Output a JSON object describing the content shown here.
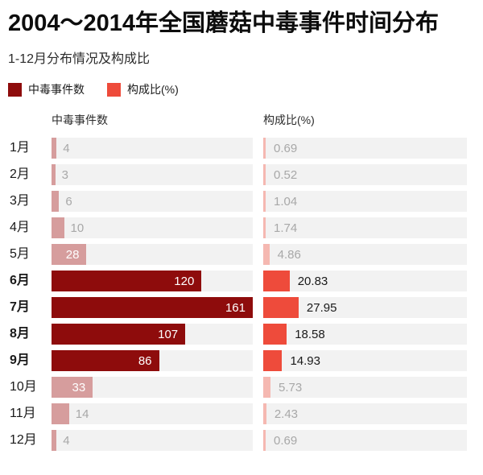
{
  "header": {
    "title": "2004～2014年全国蘑菇中毒事件时间分布",
    "subtitle": "1-12月分布情况及构成比"
  },
  "legend": [
    {
      "label": "中毒事件数",
      "color": "#8e0c0c"
    },
    {
      "label": "构成比(%)",
      "color": "#ee4b3b"
    }
  ],
  "columns": {
    "counts": "中毒事件数",
    "pct": "构成比(%)"
  },
  "colors": {
    "bar_dark": "#8e0c0c",
    "bar_orange": "#ee4b3b",
    "bar_pink": "#d69d9d",
    "bar_salmon": "#f5b8b1",
    "track": "#f2f2f2",
    "text_muted": "#a8a8a8",
    "text_dark": "#1a1a1a"
  },
  "chart_data": {
    "type": "bar",
    "orientation": "horizontal",
    "title": "2004～2014年全国蘑菇中毒事件时间分布",
    "subtitle": "1-12月分布情况及构成比",
    "categories": [
      "1月",
      "2月",
      "3月",
      "4月",
      "5月",
      "6月",
      "7月",
      "8月",
      "9月",
      "10月",
      "11月",
      "12月"
    ],
    "series": [
      {
        "name": "中毒事件数",
        "values": [
          4,
          3,
          6,
          10,
          28,
          120,
          161,
          107,
          86,
          33,
          14,
          4
        ]
      },
      {
        "name": "构成比(%)",
        "values": [
          0.69,
          0.52,
          1.04,
          1.74,
          4.86,
          20.83,
          27.95,
          18.58,
          14.93,
          5.73,
          2.43,
          0.69
        ]
      }
    ],
    "xmax": 161,
    "grid": false,
    "legend_position": "top",
    "highlighted_categories": [
      "6月",
      "7月",
      "8月",
      "9月"
    ]
  },
  "rows": [
    {
      "month": "1月",
      "count": 4,
      "count_label": "4",
      "pct": 0.69,
      "pct_label": "0.69",
      "strong": false,
      "count_inside": false
    },
    {
      "month": "2月",
      "count": 3,
      "count_label": "3",
      "pct": 0.52,
      "pct_label": "0.52",
      "strong": false,
      "count_inside": false
    },
    {
      "month": "3月",
      "count": 6,
      "count_label": "6",
      "pct": 1.04,
      "pct_label": "1.04",
      "strong": false,
      "count_inside": false
    },
    {
      "month": "4月",
      "count": 10,
      "count_label": "10",
      "pct": 1.74,
      "pct_label": "1.74",
      "strong": false,
      "count_inside": false
    },
    {
      "month": "5月",
      "count": 28,
      "count_label": "28",
      "pct": 4.86,
      "pct_label": "4.86",
      "strong": false,
      "count_inside": true
    },
    {
      "month": "6月",
      "count": 120,
      "count_label": "120",
      "pct": 20.83,
      "pct_label": "20.83",
      "strong": true,
      "count_inside": true
    },
    {
      "month": "7月",
      "count": 161,
      "count_label": "161",
      "pct": 27.95,
      "pct_label": "27.95",
      "strong": true,
      "count_inside": true
    },
    {
      "month": "8月",
      "count": 107,
      "count_label": "107",
      "pct": 18.58,
      "pct_label": "18.58",
      "strong": true,
      "count_inside": true
    },
    {
      "month": "9月",
      "count": 86,
      "count_label": "86",
      "pct": 14.93,
      "pct_label": "14.93",
      "strong": true,
      "count_inside": true
    },
    {
      "month": "10月",
      "count": 33,
      "count_label": "33",
      "pct": 5.73,
      "pct_label": "5.73",
      "strong": false,
      "count_inside": true
    },
    {
      "month": "11月",
      "count": 14,
      "count_label": "14",
      "pct": 2.43,
      "pct_label": "2.43",
      "strong": false,
      "count_inside": false
    },
    {
      "month": "12月",
      "count": 4,
      "count_label": "4",
      "pct": 0.69,
      "pct_label": "0.69",
      "strong": false,
      "count_inside": false
    }
  ]
}
